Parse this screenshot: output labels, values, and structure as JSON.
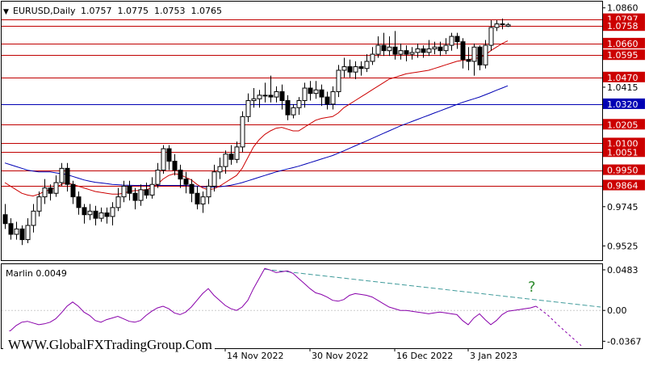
{
  "header": {
    "symbol": "EURUSD,Daily",
    "ohlc": "1.0757  1.0775  1.0753  1.0765"
  },
  "indicator": {
    "label": "Marlin 0.0049"
  },
  "watermark": "WWW.GlobalFXTradingGroup.Com",
  "annotation": "?",
  "colors": {
    "level_line": "#c00000",
    "blue_ma": "#0000b4",
    "red_ma": "#cc0000",
    "bull_body": "#ffffff",
    "bear_body": "#000000",
    "osc_line": "#8800aa",
    "trend_line": "#3f9a9a",
    "question": "#2e8b2e",
    "badge_bg": "#cc0000",
    "badge_blue": "#0000b4"
  },
  "chart_data": [
    {
      "type": "candlestick",
      "title": "EURUSD,Daily",
      "y_axis_ticks": [
        "1.0860",
        "1.0415",
        "0.9745",
        "0.9525"
      ],
      "ylim": [
        0.9445,
        1.0895
      ],
      "x_tick_labels": [
        "14 Nov 2022",
        "30 Nov 2022",
        "16 Dec 2022",
        "3 Jan 2023"
      ],
      "hlines": [
        {
          "value": 1.0797,
          "label": "1.0797",
          "color": "red"
        },
        {
          "value": 1.0758,
          "label": "1.0758",
          "color": "red"
        },
        {
          "value": 1.066,
          "label": "1.0660",
          "color": "red"
        },
        {
          "value": 1.0595,
          "label": "1.0595",
          "color": "red"
        },
        {
          "value": 1.047,
          "label": "1.0470",
          "color": "red"
        },
        {
          "value": 1.032,
          "label": "1.0320",
          "color": "blue"
        },
        {
          "value": 1.0205,
          "label": "1.0205",
          "color": "red"
        },
        {
          "value": 1.01,
          "label": "1.0100",
          "color": "red"
        },
        {
          "value": 1.0051,
          "label": "1.0051",
          "color": "red"
        },
        {
          "value": 0.995,
          "label": "0.9950",
          "color": "red"
        },
        {
          "value": 0.9864,
          "label": "0.9864",
          "color": "red"
        }
      ],
      "candles": [
        [
          0.97,
          0.965,
          0.976,
          0.962
        ],
        [
          0.965,
          0.959,
          0.968,
          0.956
        ],
        [
          0.959,
          0.962,
          0.966,
          0.956
        ],
        [
          0.962,
          0.956,
          0.964,
          0.953
        ],
        [
          0.956,
          0.964,
          0.968,
          0.954
        ],
        [
          0.964,
          0.972,
          0.976,
          0.96
        ],
        [
          0.972,
          0.98,
          0.983,
          0.969
        ],
        [
          0.98,
          0.985,
          0.99,
          0.976
        ],
        [
          0.985,
          0.982,
          0.987,
          0.978
        ],
        [
          0.982,
          0.988,
          0.992,
          0.98
        ],
        [
          0.988,
          0.996,
          0.999,
          0.986
        ],
        [
          0.996,
          0.987,
          0.999,
          0.983
        ],
        [
          0.987,
          0.98,
          0.989,
          0.976
        ],
        [
          0.98,
          0.974,
          0.983,
          0.97
        ],
        [
          0.974,
          0.97,
          0.976,
          0.965
        ],
        [
          0.97,
          0.972,
          0.976,
          0.967
        ],
        [
          0.972,
          0.968,
          0.975,
          0.964
        ],
        [
          0.968,
          0.971,
          0.974,
          0.966
        ],
        [
          0.971,
          0.969,
          0.974,
          0.965
        ],
        [
          0.969,
          0.974,
          0.977,
          0.964
        ],
        [
          0.974,
          0.98,
          0.985,
          0.972
        ],
        [
          0.98,
          0.986,
          0.989,
          0.977
        ],
        [
          0.986,
          0.982,
          0.989,
          0.978
        ],
        [
          0.982,
          0.978,
          0.985,
          0.973
        ],
        [
          0.978,
          0.984,
          0.987,
          0.975
        ],
        [
          0.984,
          0.981,
          0.988,
          0.979
        ],
        [
          0.981,
          0.987,
          0.991,
          0.979
        ],
        [
          0.987,
          0.995,
          0.999,
          0.985
        ],
        [
          0.995,
          1.007,
          1.009,
          0.993
        ],
        [
          1.007,
          1.0,
          1.009,
          0.995
        ],
        [
          1.0,
          0.995,
          1.004,
          0.992
        ],
        [
          0.995,
          0.99,
          0.998,
          0.985
        ],
        [
          0.99,
          0.987,
          0.994,
          0.982
        ],
        [
          0.987,
          0.982,
          0.99,
          0.977
        ],
        [
          0.982,
          0.976,
          0.986,
          0.973
        ],
        [
          0.976,
          0.98,
          0.983,
          0.971
        ],
        [
          0.98,
          0.986,
          0.99,
          0.976
        ],
        [
          0.986,
          0.994,
          0.998,
          0.983
        ],
        [
          0.994,
          0.997,
          1.002,
          0.99
        ],
        [
          0.997,
          1.004,
          1.006,
          0.993
        ],
        [
          1.004,
          1.001,
          1.009,
          0.998
        ],
        [
          1.001,
          1.008,
          1.011,
          0.999
        ],
        [
          1.008,
          1.025,
          1.028,
          1.005
        ],
        [
          1.025,
          1.034,
          1.038,
          1.022
        ],
        [
          1.034,
          1.035,
          1.041,
          1.03
        ],
        [
          1.035,
          1.037,
          1.04,
          1.03
        ],
        [
          1.037,
          1.037,
          1.044,
          1.033
        ],
        [
          1.037,
          1.036,
          1.048,
          1.033
        ],
        [
          1.036,
          1.039,
          1.042,
          1.033
        ],
        [
          1.039,
          1.034,
          1.043,
          1.029
        ],
        [
          1.034,
          1.026,
          1.037,
          1.023
        ],
        [
          1.026,
          1.03,
          1.032,
          1.024
        ],
        [
          1.03,
          1.034,
          1.036,
          1.026
        ],
        [
          1.034,
          1.041,
          1.044,
          1.03
        ],
        [
          1.041,
          1.038,
          1.045,
          1.034
        ],
        [
          1.038,
          1.04,
          1.045,
          1.035
        ],
        [
          1.04,
          1.036,
          1.043,
          1.031
        ],
        [
          1.036,
          1.032,
          1.039,
          1.029
        ],
        [
          1.032,
          1.039,
          1.042,
          1.029
        ],
        [
          1.039,
          1.051,
          1.054,
          1.036
        ],
        [
          1.051,
          1.053,
          1.058,
          1.047
        ],
        [
          1.053,
          1.05,
          1.057,
          1.047
        ],
        [
          1.05,
          1.053,
          1.056,
          1.046
        ],
        [
          1.053,
          1.052,
          1.056,
          1.048
        ],
        [
          1.052,
          1.056,
          1.06,
          1.05
        ],
        [
          1.056,
          1.06,
          1.064,
          1.054
        ],
        [
          1.06,
          1.065,
          1.07,
          1.058
        ],
        [
          1.065,
          1.062,
          1.072,
          1.059
        ],
        [
          1.062,
          1.064,
          1.07,
          1.059
        ],
        [
          1.064,
          1.06,
          1.073,
          1.057
        ],
        [
          1.06,
          1.062,
          1.066,
          1.057
        ],
        [
          1.062,
          1.06,
          1.065,
          1.056
        ],
        [
          1.06,
          1.061,
          1.064,
          1.057
        ],
        [
          1.061,
          1.063,
          1.066,
          1.058
        ],
        [
          1.063,
          1.061,
          1.065,
          1.058
        ],
        [
          1.061,
          1.063,
          1.068,
          1.059
        ],
        [
          1.063,
          1.064,
          1.067,
          1.06
        ],
        [
          1.064,
          1.062,
          1.067,
          1.059
        ],
        [
          1.062,
          1.065,
          1.069,
          1.06
        ],
        [
          1.065,
          1.07,
          1.072,
          1.062
        ],
        [
          1.07,
          1.067,
          1.072,
          1.063
        ],
        [
          1.067,
          1.057,
          1.069,
          1.052
        ],
        [
          1.057,
          1.056,
          1.064,
          1.051
        ],
        [
          1.056,
          1.064,
          1.066,
          1.048
        ],
        [
          1.064,
          1.054,
          1.065,
          1.051
        ],
        [
          1.054,
          1.065,
          1.068,
          1.052
        ],
        [
          1.065,
          1.075,
          1.079,
          1.062
        ],
        [
          1.075,
          1.077,
          1.079,
          1.073
        ],
        [
          1.077,
          1.077,
          1.08,
          1.074
        ],
        [
          1.0757,
          1.0765,
          1.0775,
          1.0753
        ]
      ],
      "red_ma": [
        0.988,
        0.986,
        0.984,
        0.982,
        0.981,
        0.9805,
        0.9815,
        0.983,
        0.984,
        0.985,
        0.987,
        0.988,
        0.987,
        0.986,
        0.985,
        0.984,
        0.983,
        0.9825,
        0.982,
        0.9815,
        0.9815,
        0.982,
        0.983,
        0.9835,
        0.9835,
        0.984,
        0.985,
        0.987,
        0.99,
        0.992,
        0.993,
        0.9925,
        0.991,
        0.9895,
        0.987,
        0.985,
        0.984,
        0.9845,
        0.986,
        0.988,
        0.99,
        0.992,
        0.996,
        1.002,
        1.008,
        1.012,
        1.015,
        1.017,
        1.0185,
        1.019,
        1.018,
        1.017,
        1.017,
        1.019,
        1.021,
        1.023,
        1.024,
        1.0245,
        1.025,
        1.027,
        1.03,
        1.032,
        1.034,
        1.036,
        1.038,
        1.04,
        1.042,
        1.044,
        1.046,
        1.047,
        1.048,
        1.049,
        1.0495,
        1.05,
        1.0505,
        1.051,
        1.052,
        1.053,
        1.054,
        1.055,
        1.056,
        1.0565,
        1.057,
        1.0575,
        1.058,
        1.0595,
        1.062,
        1.064,
        1.066,
        1.0675
      ],
      "blue_ma": [
        0.999,
        0.998,
        0.997,
        0.996,
        0.995,
        0.9945,
        0.994,
        0.994,
        0.994,
        0.9935,
        0.993,
        0.9925,
        0.9915,
        0.9905,
        0.9895,
        0.9888,
        0.9882,
        0.9878,
        0.9874,
        0.987,
        0.9868,
        0.9866,
        0.9865,
        0.9864,
        0.9864,
        0.9864,
        0.9864,
        0.9864,
        0.9864,
        0.9864,
        0.9864,
        0.9864,
        0.9864,
        0.9862,
        0.986,
        0.9857,
        0.9855,
        0.9855,
        0.9857,
        0.986,
        0.9865,
        0.9872,
        0.988,
        0.989,
        0.99,
        0.991,
        0.992,
        0.993,
        0.994,
        0.9948,
        0.9956,
        0.9964,
        0.9972,
        0.9982,
        0.9992,
        1.0002,
        1.0012,
        1.0022,
        1.0032,
        1.0045,
        1.0058,
        1.0072,
        1.0086,
        1.01,
        1.0114,
        1.0128,
        1.0142,
        1.0156,
        1.017,
        1.0184,
        1.0198,
        1.021,
        1.0222,
        1.0234,
        1.0246,
        1.0258,
        1.027,
        1.0282,
        1.0294,
        1.0306,
        1.0318,
        1.033,
        1.034,
        1.035,
        1.036,
        1.0372,
        1.0385,
        1.0398,
        1.041,
        1.0423
      ]
    },
    {
      "type": "line",
      "title": "Marlin 0.0049",
      "y_axis_ticks": [
        "0.0483",
        "0.00",
        "-0.0367"
      ],
      "ylim": [
        -0.045,
        0.055
      ],
      "series": [
        {
          "values": [
            -0.028,
            -0.024,
            -0.018,
            -0.014,
            -0.013,
            -0.015,
            -0.017,
            -0.016,
            -0.014,
            -0.01,
            -0.003,
            0.005,
            0.01,
            0.005,
            -0.002,
            -0.006,
            -0.012,
            -0.014,
            -0.011,
            -0.009,
            -0.007,
            -0.01,
            -0.013,
            -0.014,
            -0.012,
            -0.006,
            -0.001,
            0.003,
            0.005,
            0.002,
            -0.003,
            -0.005,
            -0.002,
            0.004,
            0.012,
            0.02,
            0.026,
            0.018,
            0.012,
            0.006,
            0.002,
            0.0,
            0.004,
            0.012,
            0.026,
            0.038,
            0.05,
            0.048,
            0.045,
            0.046,
            0.047,
            0.044,
            0.038,
            0.032,
            0.026,
            0.021,
            0.019,
            0.016,
            0.012,
            0.011,
            0.013,
            0.018,
            0.02,
            0.019,
            0.018,
            0.016,
            0.012,
            0.008,
            0.004,
            0.002,
            0.0,
            0.0,
            -0.001,
            -0.002,
            -0.003,
            -0.004,
            -0.003,
            -0.002,
            -0.003,
            -0.004,
            -0.005,
            -0.012,
            -0.017,
            -0.009,
            -0.004,
            -0.011,
            -0.017,
            -0.012,
            -0.005,
            -0.001,
            0.0,
            0.001,
            0.002,
            0.003,
            0.005
          ]
        },
        {
          "values": [
            0.005,
            -0.005,
            -0.018,
            -0.03,
            -0.042
          ]
        },
        {
          "values": [
            0.049,
            0.004
          ]
        }
      ]
    }
  ]
}
